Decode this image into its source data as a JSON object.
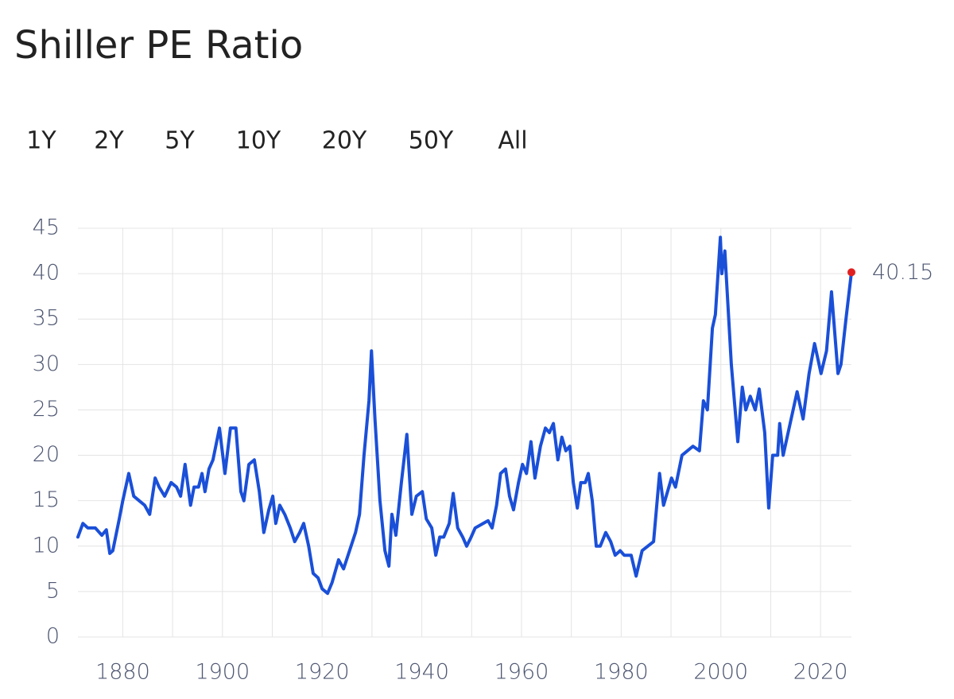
{
  "chart_data": {
    "type": "line",
    "title": "Shiller PE Ratio",
    "range_buttons": [
      "1Y",
      "2Y",
      "5Y",
      "10Y",
      "20Y",
      "50Y",
      "All"
    ],
    "x": [
      1871,
      1872,
      1873,
      1874.5,
      1875.8,
      1876.7,
      1877.4,
      1878,
      1879.3,
      1880,
      1881.2,
      1882.2,
      1883.3,
      1884.4,
      1885.4,
      1886.5,
      1887.3,
      1888.4,
      1889.7,
      1890.8,
      1891.6,
      1892.5,
      1893.6,
      1894.3,
      1895.2,
      1895.9,
      1896.5,
      1897.3,
      1898.1,
      1899.4,
      1900.5,
      1901.6,
      1902.7,
      1903.7,
      1904.3,
      1905.3,
      1906.4,
      1907.4,
      1908.3,
      1909.3,
      1910.1,
      1910.7,
      1911.5,
      1912.5,
      1913.6,
      1914.5,
      1915.5,
      1916.3,
      1917.3,
      1918.2,
      1919.2,
      1920,
      1921.1,
      1922,
      1923.3,
      1924.3,
      1925.5,
      1926.7,
      1927.5,
      1928.4,
      1929.4,
      1929.9,
      1930.6,
      1931.6,
      1932.6,
      1933.4,
      1934,
      1934.8,
      1935.9,
      1937,
      1938,
      1938.9,
      1940.1,
      1940.9,
      1942,
      1942.8,
      1943.6,
      1944.4,
      1945.5,
      1946.3,
      1947.2,
      1948.2,
      1949,
      1949.9,
      1950.7,
      1952.3,
      1953.3,
      1954.1,
      1955,
      1955.8,
      1956.8,
      1957.6,
      1958.4,
      1959.4,
      1960.2,
      1961,
      1961.9,
      1962.7,
      1963.8,
      1964.8,
      1965.6,
      1966.4,
      1967.3,
      1968.1,
      1968.9,
      1969.7,
      1970.4,
      1971.2,
      1971.9,
      1972.8,
      1973.4,
      1974.2,
      1975,
      1975.8,
      1976.9,
      1977.9,
      1978.8,
      1979.8,
      1980.6,
      1982,
      1983,
      1984.2,
      1986.5,
      1987.7,
      1988.5,
      1990.1,
      1990.9,
      1992.2,
      1994.4,
      1995.7,
      1996.5,
      1997.3,
      1998.3,
      1998.9,
      1999.9,
      2000.2,
      2000.8,
      2002.1,
      2003.4,
      2004.3,
      2005,
      2005.9,
      2006.9,
      2007.7,
      2008.8,
      2009.6,
      2010.4,
      2011.4,
      2011.8,
      2012.5,
      2013.3,
      2015.3,
      2016.5,
      2017.7,
      2018.8,
      2020.1,
      2021.2,
      2022.2,
      2023.5,
      2024.1,
      2025.1,
      2026.2
    ],
    "series": [
      {
        "name": "Shiller PE Ratio",
        "color": "#1a4fd8",
        "values": [
          11,
          12.5,
          12,
          12,
          11.2,
          11.8,
          9.2,
          9.5,
          13,
          15,
          18,
          15.5,
          15,
          14.5,
          13.5,
          17.5,
          16.5,
          15.5,
          17,
          16.5,
          15.5,
          19,
          14.5,
          16.5,
          16.5,
          18,
          16,
          18.5,
          19.5,
          23,
          18,
          23,
          23,
          16,
          15,
          19,
          19.5,
          16,
          11.5,
          14,
          15.5,
          12.5,
          14.5,
          13.5,
          12,
          10.5,
          11.5,
          12.5,
          10,
          7,
          6.5,
          5.3,
          4.8,
          6,
          8.5,
          7.5,
          9.5,
          11.5,
          13.5,
          20,
          26,
          31.5,
          24,
          15,
          9.5,
          7.8,
          13.5,
          11.2,
          17,
          22.3,
          13.5,
          15.5,
          16,
          13,
          12,
          9,
          11,
          11,
          12.5,
          15.8,
          12,
          11,
          10,
          11,
          12,
          12.5,
          12.8,
          12,
          14.5,
          18,
          18.5,
          15.5,
          14,
          17,
          19,
          18,
          21.5,
          17.5,
          21,
          23,
          22.5,
          23.5,
          19.5,
          22,
          20.5,
          21,
          17,
          14.2,
          17,
          17,
          18,
          15,
          10,
          10,
          11.5,
          10.5,
          9,
          9.5,
          9,
          9,
          6.7,
          9.5,
          10.5,
          18,
          14.5,
          17.5,
          16.5,
          20,
          21,
          20.5,
          26,
          25,
          34,
          35.5,
          44,
          40,
          42.5,
          30,
          21.5,
          27.5,
          25,
          26.5,
          25,
          27.3,
          22.5,
          14.2,
          20,
          20,
          23.5,
          20,
          22,
          27,
          24,
          29,
          32.3,
          29,
          31.5,
          38,
          29,
          30,
          35,
          40.15
        ]
      }
    ],
    "last_point_color": "#e02020",
    "xlim": [
      1871,
      2026.2
    ],
    "xticks": [
      1880,
      1900,
      1920,
      1940,
      1960,
      1980,
      2000,
      2020
    ],
    "xgrid": [
      1880,
      1890,
      1900,
      1910,
      1920,
      1930,
      1940,
      1950,
      1960,
      1970,
      1980,
      1990,
      2000,
      2010,
      2020
    ],
    "ylim": [
      0,
      45
    ],
    "yticks": [
      0,
      5,
      10,
      15,
      20,
      25,
      30,
      35,
      40,
      45
    ],
    "grid": true
  }
}
